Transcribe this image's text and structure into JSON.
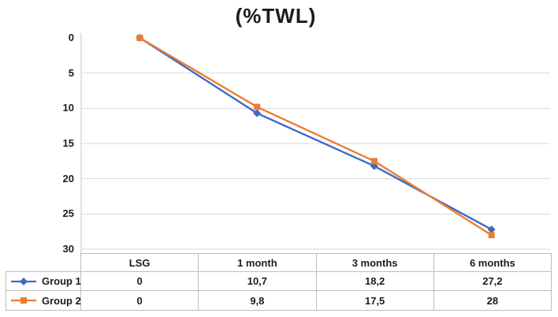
{
  "chart_data": {
    "type": "line",
    "title": "(%TWL)",
    "categories": [
      "LSG",
      "1 month",
      "3 months",
      "6 months"
    ],
    "series": [
      {
        "name": "Group 1",
        "values": [
          0,
          10.7,
          18.2,
          27.2
        ],
        "display_values": [
          "0",
          "10,7",
          "18,2",
          "27,2"
        ],
        "color": "#3B6CC5",
        "marker": "diamond"
      },
      {
        "name": "Group 2",
        "values": [
          0,
          9.8,
          17.5,
          28
        ],
        "display_values": [
          "0",
          "9,8",
          "17,5",
          "28"
        ],
        "color": "#ED7D31",
        "marker": "square"
      }
    ],
    "y_axis": {
      "min": 0,
      "max": 30,
      "step": 5,
      "inverted": true,
      "tick_labels": [
        "0",
        "5",
        "10",
        "15",
        "20",
        "25",
        "30"
      ]
    },
    "grid": true,
    "legend_position": "data-table-left",
    "colors": {
      "gridline": "#D9D9D9",
      "axis_line": "#C5C5C5",
      "table_border": "#BDBDBD",
      "text": "#1C1C1C",
      "background": "#FFFFFF"
    }
  }
}
